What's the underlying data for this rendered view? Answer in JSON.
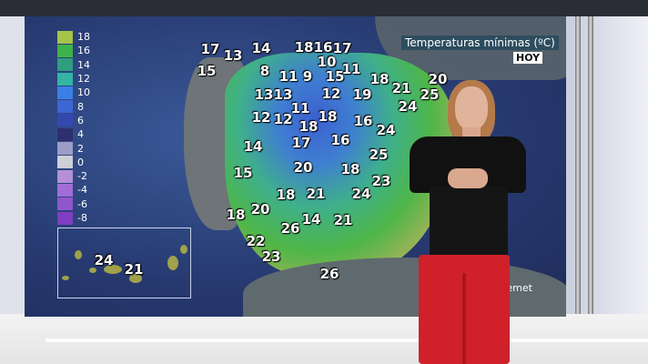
{
  "title": "Temperaturas mínimas (ºC)",
  "day": "HOY",
  "credit": "Aemet",
  "legend": [
    {
      "value": "18",
      "color": "#a6c34a"
    },
    {
      "value": "16",
      "color": "#3db34a"
    },
    {
      "value": "14",
      "color": "#2f9e7e"
    },
    {
      "value": "12",
      "color": "#33b5a4"
    },
    {
      "value": "10",
      "color": "#3a7fe6"
    },
    {
      "value": "8",
      "color": "#3b66d4"
    },
    {
      "value": "6",
      "color": "#3548b0"
    },
    {
      "value": "4",
      "color": "#2e2f6e"
    },
    {
      "value": "2",
      "color": "#9d9dc8"
    },
    {
      "value": "0",
      "color": "#cfcfd6"
    },
    {
      "value": "-2",
      "color": "#b58fd8"
    },
    {
      "value": "-4",
      "color": "#a26dd6"
    },
    {
      "value": "-6",
      "color": "#9056cc"
    },
    {
      "value": "-8",
      "color": "#7d3fc0"
    }
  ],
  "peninsula_temps": [
    "17",
    "13",
    "14",
    "18",
    "16",
    "17",
    "10",
    "15",
    "8",
    "11",
    "9",
    "15",
    "11",
    "18",
    "20",
    "21",
    "25",
    "13",
    "13",
    "12",
    "19",
    "24",
    "11",
    "12",
    "12",
    "18",
    "18",
    "16",
    "24",
    "14",
    "17",
    "16",
    "25",
    "15",
    "20",
    "18",
    "23",
    "18",
    "21",
    "24",
    "20",
    "18",
    "14",
    "21",
    "26",
    "22",
    "23",
    "26"
  ],
  "canarias_temps": [
    "24",
    "21"
  ]
}
